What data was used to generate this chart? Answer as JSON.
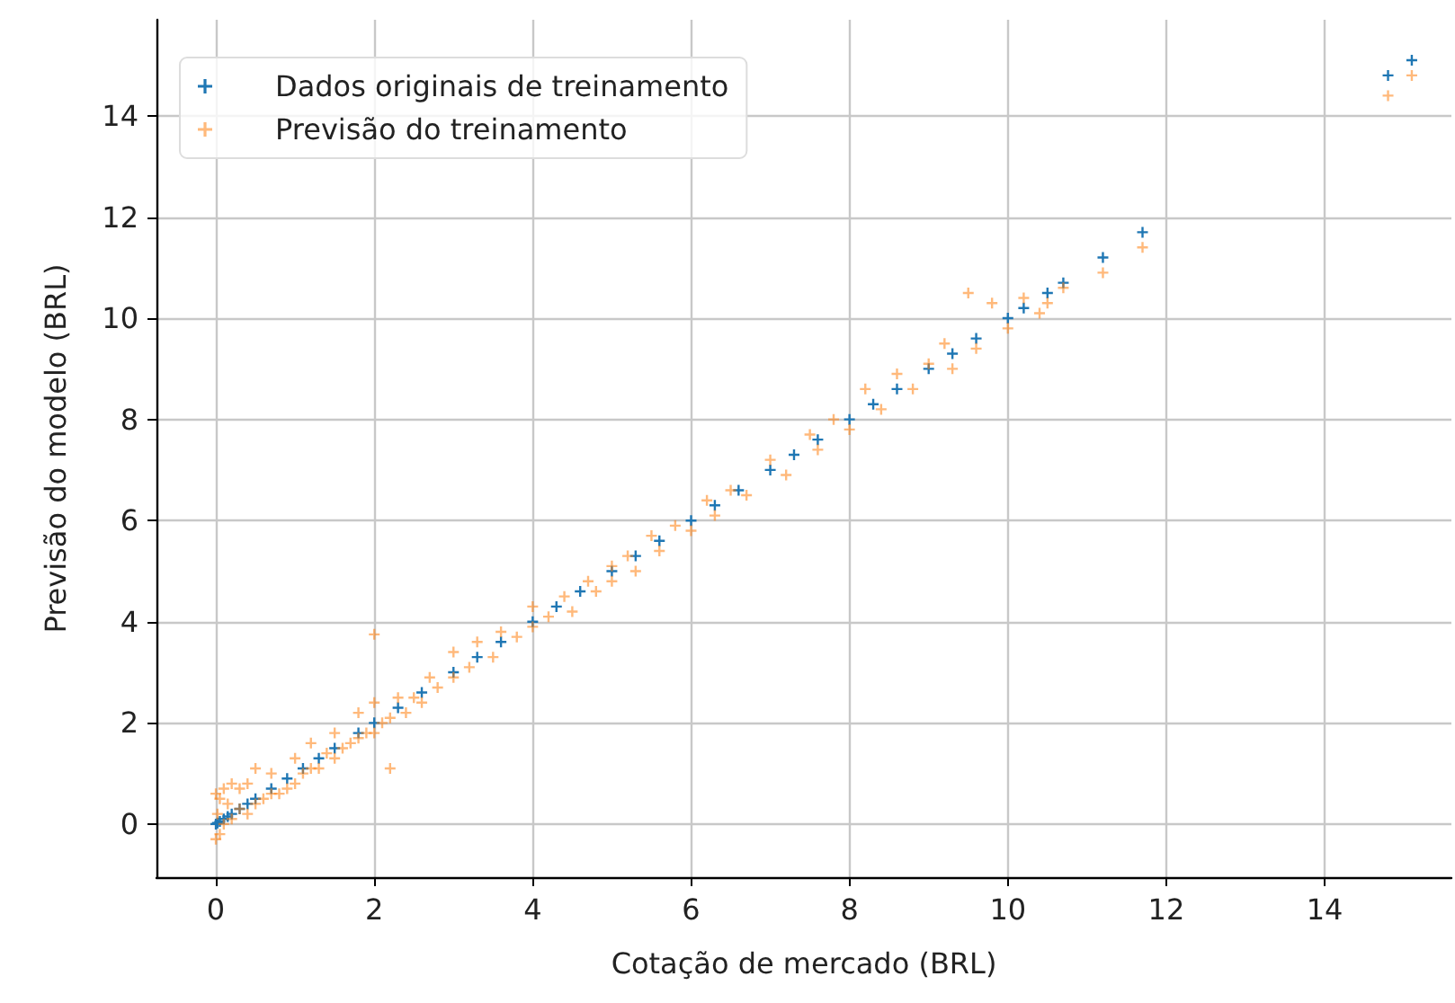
{
  "chart_data": {
    "type": "scatter",
    "xlabel": "Cotação de mercado (BRL)",
    "ylabel": "Previsão do modelo (BRL)",
    "xlim": [
      -0.75,
      15.6
    ],
    "ylim": [
      -1.05,
      15.9
    ],
    "xticks": [
      0,
      2,
      4,
      6,
      8,
      10,
      12,
      14
    ],
    "yticks": [
      0,
      2,
      4,
      6,
      8,
      10,
      12,
      14
    ],
    "grid": true,
    "legend": "top left",
    "marker": "cross",
    "series": [
      {
        "name": "Dados originais de treinamento",
        "color": "#1f77b4",
        "x": [
          0,
          0.02,
          0.05,
          0.1,
          0.15,
          0.2,
          0.3,
          0.4,
          0.5,
          0.7,
          0.9,
          1.1,
          1.3,
          1.5,
          1.8,
          2.0,
          2.3,
          2.6,
          3.0,
          3.3,
          3.6,
          4.0,
          4.3,
          4.6,
          5.0,
          5.3,
          5.6,
          6.0,
          6.3,
          6.6,
          7.0,
          7.3,
          7.6,
          8.0,
          8.3,
          8.6,
          9.0,
          9.3,
          9.6,
          10.0,
          10.2,
          10.5,
          10.7,
          11.2,
          11.7,
          14.8,
          15.1
        ],
        "values": [
          0,
          0.02,
          0.05,
          0.1,
          0.15,
          0.2,
          0.3,
          0.4,
          0.5,
          0.7,
          0.9,
          1.1,
          1.3,
          1.5,
          1.8,
          2.0,
          2.3,
          2.6,
          3.0,
          3.3,
          3.6,
          4.0,
          4.3,
          4.6,
          5.0,
          5.3,
          5.6,
          6.0,
          6.3,
          6.6,
          7.0,
          7.3,
          7.6,
          8.0,
          8.3,
          8.6,
          9.0,
          9.3,
          9.6,
          10.0,
          10.2,
          10.5,
          10.7,
          11.2,
          11.7,
          14.8,
          15.1
        ]
      },
      {
        "name": "Previsão do treinamento",
        "color": "#ff7f0e",
        "x": [
          0,
          0,
          0.02,
          0.05,
          0.05,
          0.1,
          0.1,
          0.15,
          0.2,
          0.2,
          0.3,
          0.3,
          0.4,
          0.4,
          0.5,
          0.5,
          0.6,
          0.7,
          0.7,
          0.8,
          0.9,
          1.0,
          1.0,
          1.1,
          1.2,
          1.2,
          1.3,
          1.4,
          1.5,
          1.5,
          1.6,
          1.7,
          1.8,
          1.8,
          1.9,
          2.0,
          2.0,
          2.0,
          2.1,
          2.2,
          2.2,
          2.3,
          2.4,
          2.5,
          2.6,
          2.7,
          2.8,
          3.0,
          3.0,
          3.2,
          3.3,
          3.5,
          3.6,
          3.8,
          4.0,
          4.0,
          4.2,
          4.4,
          4.5,
          4.7,
          4.8,
          5.0,
          5.0,
          5.2,
          5.3,
          5.5,
          5.6,
          5.8,
          6.0,
          6.2,
          6.3,
          6.5,
          6.7,
          7.0,
          7.2,
          7.5,
          7.6,
          7.8,
          8.0,
          8.2,
          8.4,
          8.6,
          8.8,
          9.0,
          9.2,
          9.3,
          9.5,
          9.6,
          9.8,
          10.0,
          10.2,
          10.4,
          10.5,
          10.7,
          11.2,
          11.7,
          14.8,
          15.1
        ],
        "values": [
          -0.3,
          0.6,
          0.2,
          -0.2,
          0.5,
          0.0,
          0.7,
          0.4,
          0.1,
          0.8,
          0.3,
          0.7,
          0.2,
          0.8,
          0.4,
          1.1,
          0.5,
          0.6,
          1.0,
          0.6,
          0.7,
          0.8,
          1.3,
          1.0,
          1.1,
          1.6,
          1.1,
          1.4,
          1.3,
          1.8,
          1.5,
          1.6,
          1.7,
          2.2,
          1.8,
          1.8,
          2.4,
          3.75,
          2.0,
          1.1,
          2.1,
          2.5,
          2.2,
          2.5,
          2.4,
          2.9,
          2.7,
          2.9,
          3.4,
          3.1,
          3.6,
          3.3,
          3.8,
          3.7,
          3.9,
          4.3,
          4.1,
          4.5,
          4.2,
          4.8,
          4.6,
          5.1,
          4.8,
          5.3,
          5.0,
          5.7,
          5.4,
          5.9,
          5.8,
          6.4,
          6.1,
          6.6,
          6.5,
          7.2,
          6.9,
          7.7,
          7.4,
          8.0,
          7.8,
          8.6,
          8.2,
          8.9,
          8.6,
          9.1,
          9.5,
          9.0,
          10.5,
          9.4,
          10.3,
          9.8,
          10.4,
          10.1,
          10.3,
          10.6,
          10.9,
          11.4,
          14.4,
          14.8
        ]
      }
    ]
  }
}
